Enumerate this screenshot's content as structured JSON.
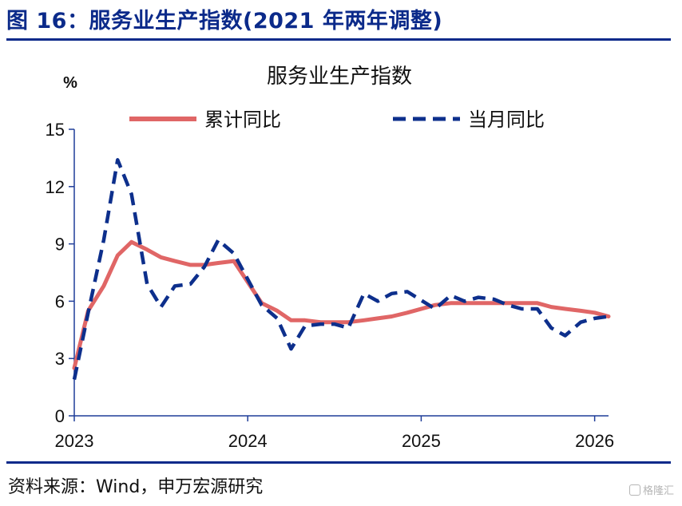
{
  "header": {
    "figure_title": "图 16：服务业生产指数(2021 年两年调整)"
  },
  "footer": {
    "source": "资料来源：Wind，申万宏源研究",
    "watermark": "格隆汇"
  },
  "colors": {
    "title_blue": "#0b2a8a",
    "cumulative": "#e06666",
    "monthly": "#0d2f8c",
    "axis": "#1f3d99"
  },
  "chart_data": {
    "type": "line",
    "title": "服务业生产指数",
    "ylabel": "%",
    "xlabel": "",
    "ylim": [
      0,
      15
    ],
    "xlim": [
      2023.0,
      2026.08
    ],
    "yticks": [
      0,
      3,
      6,
      9,
      12,
      15
    ],
    "xticks": [
      2023,
      2024,
      2025,
      2026
    ],
    "grid": false,
    "legend_position": "top",
    "series": [
      {
        "name": "累计同比",
        "style": "solid",
        "color": "#e06666",
        "points": [
          [
            2023.0,
            2.5
          ],
          [
            2023.08,
            5.5
          ],
          [
            2023.17,
            6.8
          ],
          [
            2023.25,
            8.4
          ],
          [
            2023.33,
            9.1
          ],
          [
            2023.42,
            8.7
          ],
          [
            2023.5,
            8.3
          ],
          [
            2023.58,
            8.1
          ],
          [
            2023.67,
            7.9
          ],
          [
            2023.75,
            7.9
          ],
          [
            2023.83,
            8.0
          ],
          [
            2023.92,
            8.1
          ],
          [
            2024.08,
            5.9
          ],
          [
            2024.17,
            5.5
          ],
          [
            2024.25,
            5.0
          ],
          [
            2024.33,
            5.0
          ],
          [
            2024.42,
            4.9
          ],
          [
            2024.5,
            4.9
          ],
          [
            2024.58,
            4.9
          ],
          [
            2024.67,
            5.0
          ],
          [
            2024.75,
            5.1
          ],
          [
            2024.83,
            5.2
          ],
          [
            2024.92,
            5.4
          ],
          [
            2025.08,
            5.8
          ],
          [
            2025.17,
            5.9
          ],
          [
            2025.25,
            5.9
          ],
          [
            2025.33,
            5.9
          ],
          [
            2025.42,
            5.9
          ],
          [
            2025.5,
            5.9
          ],
          [
            2025.58,
            5.9
          ],
          [
            2025.67,
            5.9
          ],
          [
            2025.75,
            5.7
          ],
          [
            2025.83,
            5.6
          ],
          [
            2025.92,
            5.5
          ],
          [
            2026.0,
            5.4
          ],
          [
            2026.08,
            5.2
          ]
        ]
      },
      {
        "name": "当月同比",
        "style": "dashed",
        "color": "#0d2f8c",
        "points": [
          [
            2023.0,
            1.9
          ],
          [
            2023.08,
            5.4
          ],
          [
            2023.17,
            9.2
          ],
          [
            2023.25,
            13.4
          ],
          [
            2023.33,
            11.6
          ],
          [
            2023.42,
            6.9
          ],
          [
            2023.5,
            5.7
          ],
          [
            2023.58,
            6.8
          ],
          [
            2023.67,
            6.9
          ],
          [
            2023.75,
            7.8
          ],
          [
            2023.83,
            9.2
          ],
          [
            2023.92,
            8.5
          ],
          [
            2024.08,
            5.8
          ],
          [
            2024.17,
            5.1
          ],
          [
            2024.25,
            3.5
          ],
          [
            2024.33,
            4.7
          ],
          [
            2024.42,
            4.8
          ],
          [
            2024.5,
            4.8
          ],
          [
            2024.58,
            4.6
          ],
          [
            2024.67,
            6.4
          ],
          [
            2024.75,
            6.0
          ],
          [
            2024.83,
            6.4
          ],
          [
            2024.92,
            6.5
          ],
          [
            2025.08,
            5.6
          ],
          [
            2025.17,
            6.3
          ],
          [
            2025.25,
            6.0
          ],
          [
            2025.33,
            6.2
          ],
          [
            2025.42,
            6.1
          ],
          [
            2025.5,
            5.8
          ],
          [
            2025.58,
            5.6
          ],
          [
            2025.67,
            5.6
          ],
          [
            2025.75,
            4.6
          ],
          [
            2025.83,
            4.2
          ],
          [
            2025.92,
            4.9
          ],
          [
            2026.0,
            5.1
          ],
          [
            2026.08,
            5.2
          ]
        ]
      }
    ]
  }
}
